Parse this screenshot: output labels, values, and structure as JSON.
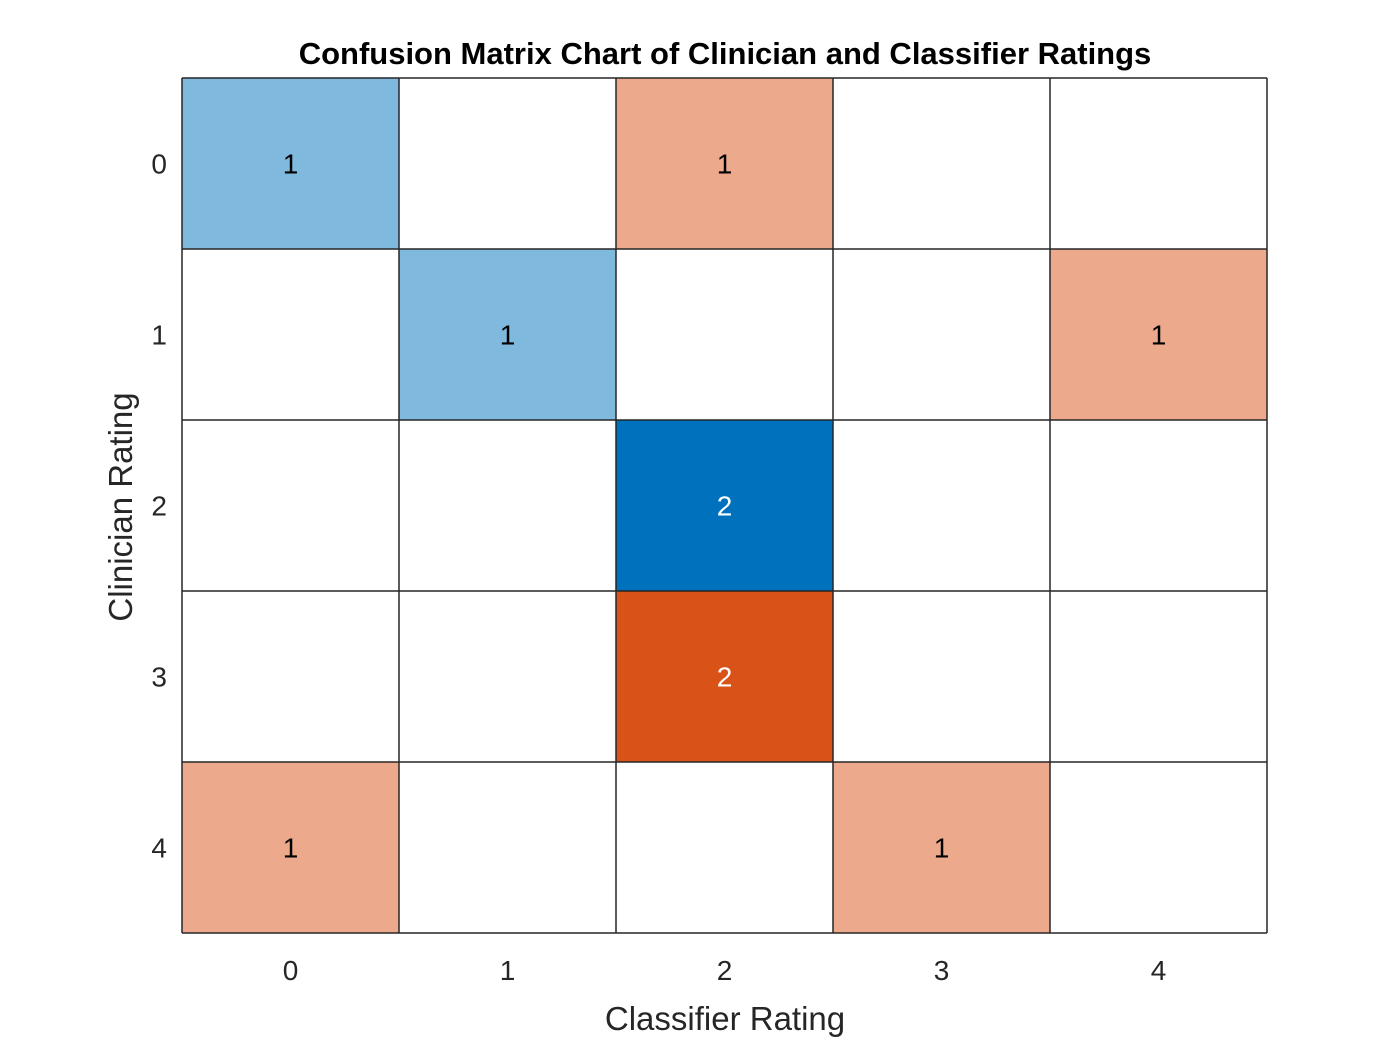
{
  "chart_data": {
    "type": "heatmap",
    "title": "Confusion Matrix Chart of Clinician and Classifier Ratings",
    "xlabel": "Classifier Rating",
    "ylabel": "Clinician Rating",
    "x_categories": [
      "0",
      "1",
      "2",
      "3",
      "4"
    ],
    "y_categories": [
      "0",
      "1",
      "2",
      "3",
      "4"
    ],
    "matrix": [
      [
        1,
        0,
        1,
        0,
        0
      ],
      [
        0,
        1,
        0,
        0,
        1
      ],
      [
        0,
        0,
        2,
        0,
        0
      ],
      [
        0,
        0,
        2,
        0,
        0
      ],
      [
        1,
        0,
        0,
        1,
        0
      ]
    ],
    "colors": {
      "diagonal": "#0072BD",
      "off_diagonal": "#D95319",
      "grid": "#262626",
      "background": "#ffffff"
    }
  }
}
